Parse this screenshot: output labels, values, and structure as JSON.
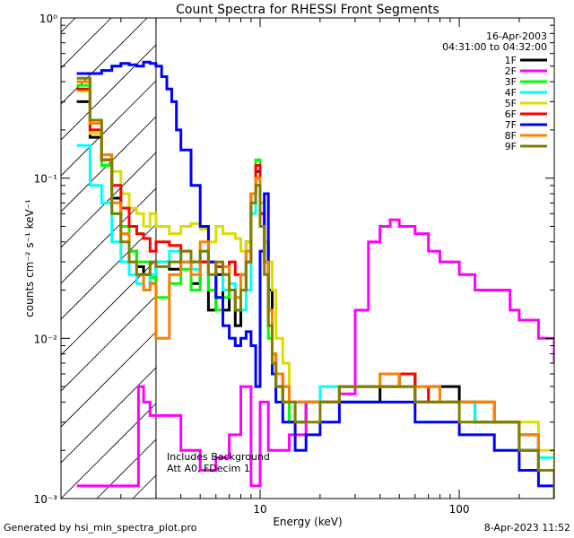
{
  "chart_data": {
    "type": "line",
    "title": "Count Spectra for RHESSI Front Segments",
    "date": "16-Apr-2003",
    "time_range": "04:31:00 to 04:32:00",
    "xlabel": "Energy (keV)",
    "ylabel": "counts cm⁻² s⁻¹ keV⁻¹",
    "x_scale": "log",
    "y_scale": "log",
    "xlim": [
      1,
      300
    ],
    "ylim": [
      0.001,
      1
    ],
    "x_ticks": [
      "10",
      "100"
    ],
    "y_ticks": [
      "10⁻³",
      "10⁻²",
      "10⁻¹",
      "10⁰"
    ],
    "legend_position": "top-right",
    "hatched_region_keV": [
      1,
      3
    ],
    "annotation_lines": [
      "Includes Background",
      "Att A0, FDecim 1"
    ],
    "footer_left": "Generated by hsi_min_spectra_plot.pro",
    "footer_right": "8-Apr-2023 11:52",
    "series": [
      {
        "name": "1F",
        "color": "#000000",
        "x": [
          1.2,
          1.4,
          1.6,
          1.8,
          2.0,
          2.2,
          2.4,
          2.6,
          2.8,
          3.0,
          3.5,
          4,
          4.5,
          5,
          5.5,
          6,
          6.5,
          7,
          7.5,
          8,
          8.5,
          9,
          9.5,
          10,
          10.5,
          11,
          11.5,
          12,
          13,
          14,
          15,
          17,
          20,
          25,
          30,
          40,
          50,
          60,
          70,
          80,
          100,
          120,
          150,
          200,
          250,
          300
        ],
        "y": [
          0.3,
          0.18,
          0.13,
          0.075,
          0.05,
          0.035,
          0.028,
          0.025,
          0.022,
          0.03,
          0.027,
          0.03,
          0.022,
          0.03,
          0.015,
          0.025,
          0.015,
          0.02,
          0.012,
          0.025,
          0.04,
          0.08,
          0.11,
          0.06,
          0.04,
          0.02,
          0.008,
          0.005,
          0.004,
          0.003,
          0.003,
          0.004,
          0.004,
          0.004,
          0.004,
          0.005,
          0.006,
          0.004,
          0.004,
          0.005,
          0.004,
          0.003,
          0.003,
          0.002,
          0.0015,
          0.001
        ]
      },
      {
        "name": "2F",
        "color": "#ff00ff",
        "x": [
          1.2,
          1.5,
          2.0,
          2.3,
          2.45,
          2.6,
          2.8,
          3.0,
          4.0,
          5.0,
          6.0,
          7.0,
          8.0,
          9.0,
          10,
          11,
          12,
          14,
          17,
          20,
          25,
          30,
          35,
          40,
          45,
          50,
          60,
          70,
          80,
          100,
          120,
          150,
          180,
          200,
          250,
          300
        ],
        "y": [
          0.0012,
          0.0012,
          0.0012,
          0.0012,
          0.005,
          0.004,
          0.0033,
          0.0033,
          0.002,
          0.0015,
          0.0018,
          0.0025,
          0.005,
          0.0012,
          0.004,
          0.002,
          0.002,
          0.0025,
          0.004,
          0.004,
          0.0045,
          0.015,
          0.04,
          0.05,
          0.055,
          0.05,
          0.045,
          0.035,
          0.03,
          0.025,
          0.02,
          0.02,
          0.015,
          0.013,
          0.01,
          0.007
        ]
      },
      {
        "name": "3F",
        "color": "#00ff00",
        "x": [
          1.2,
          1.4,
          1.6,
          1.8,
          2.0,
          2.2,
          2.4,
          2.6,
          2.8,
          3.0,
          3.5,
          4,
          4.5,
          5,
          5.5,
          6,
          6.5,
          7,
          7.5,
          8,
          8.5,
          9,
          9.5,
          10,
          10.5,
          11,
          11.5,
          12,
          13,
          14,
          15,
          17,
          20,
          25,
          30,
          40,
          50,
          60,
          70,
          80,
          100,
          120,
          150,
          200,
          250,
          300
        ],
        "y": [
          0.38,
          0.2,
          0.12,
          0.06,
          0.05,
          0.035,
          0.03,
          0.03,
          0.024,
          0.018,
          0.022,
          0.027,
          0.02,
          0.035,
          0.02,
          0.015,
          0.018,
          0.02,
          0.015,
          0.02,
          0.03,
          0.08,
          0.13,
          0.07,
          0.03,
          0.01,
          0.006,
          0.005,
          0.004,
          0.003,
          0.004,
          0.004,
          0.004,
          0.005,
          0.005,
          0.006,
          0.005,
          0.004,
          0.005,
          0.004,
          0.004,
          0.004,
          0.003,
          0.0025,
          0.0015,
          0.001
        ]
      },
      {
        "name": "4F",
        "color": "#00ffff",
        "x": [
          1.2,
          1.4,
          1.6,
          1.8,
          2.0,
          2.2,
          2.4,
          2.6,
          2.8,
          3.0,
          3.5,
          4,
          4.5,
          5,
          5.5,
          6,
          6.5,
          7,
          7.5,
          8,
          8.5,
          9,
          9.5,
          10,
          10.5,
          11,
          11.5,
          12,
          13,
          14,
          15,
          17,
          20,
          25,
          30,
          40,
          50,
          60,
          70,
          80,
          100,
          120,
          150,
          200,
          250,
          300
        ],
        "y": [
          0.16,
          0.09,
          0.07,
          0.04,
          0.03,
          0.025,
          0.022,
          0.02,
          0.025,
          0.03,
          0.035,
          0.03,
          0.027,
          0.035,
          0.03,
          0.028,
          0.02,
          0.022,
          0.018,
          0.015,
          0.02,
          0.06,
          0.09,
          0.05,
          0.03,
          0.015,
          0.008,
          0.006,
          0.005,
          0.004,
          0.004,
          0.004,
          0.005,
          0.005,
          0.005,
          0.005,
          0.005,
          0.004,
          0.004,
          0.004,
          0.004,
          0.003,
          0.003,
          0.0025,
          0.0018,
          0.0012
        ]
      },
      {
        "name": "5F",
        "color": "#dddd00",
        "x": [
          1.2,
          1.4,
          1.6,
          1.8,
          2.0,
          2.2,
          2.4,
          2.6,
          2.8,
          3.0,
          3.5,
          4,
          4.5,
          5,
          5.5,
          6,
          6.5,
          7,
          7.5,
          8,
          8.5,
          9,
          9.5,
          10,
          10.5,
          11,
          11.5,
          12,
          13,
          14,
          15,
          17,
          20,
          25,
          30,
          40,
          50,
          60,
          70,
          80,
          100,
          120,
          150,
          200,
          250,
          300
        ],
        "y": [
          0.35,
          0.19,
          0.14,
          0.11,
          0.08,
          0.065,
          0.06,
          0.05,
          0.06,
          0.05,
          0.045,
          0.05,
          0.052,
          0.048,
          0.04,
          0.05,
          0.045,
          0.045,
          0.042,
          0.035,
          0.04,
          0.08,
          0.1,
          0.07,
          0.04,
          0.03,
          0.02,
          0.01,
          0.007,
          0.004,
          0.004,
          0.004,
          0.004,
          0.005,
          0.005,
          0.005,
          0.005,
          0.005,
          0.004,
          0.004,
          0.004,
          0.004,
          0.003,
          0.003,
          0.002,
          0.0015
        ]
      },
      {
        "name": "6F",
        "color": "#ff0000",
        "x": [
          1.2,
          1.4,
          1.6,
          1.8,
          2.0,
          2.2,
          2.4,
          2.6,
          2.8,
          3.0,
          3.5,
          4,
          4.5,
          5,
          5.5,
          6,
          6.5,
          7,
          7.5,
          8,
          8.5,
          9,
          9.5,
          10,
          10.5,
          11,
          11.5,
          12,
          13,
          14,
          15,
          17,
          20,
          25,
          30,
          40,
          50,
          60,
          70,
          80,
          100,
          120,
          150,
          200,
          250,
          300
        ],
        "y": [
          0.36,
          0.2,
          0.13,
          0.09,
          0.065,
          0.05,
          0.045,
          0.042,
          0.035,
          0.04,
          0.038,
          0.035,
          0.03,
          0.03,
          0.03,
          0.028,
          0.025,
          0.03,
          0.025,
          0.02,
          0.03,
          0.08,
          0.12,
          0.06,
          0.03,
          0.015,
          0.008,
          0.006,
          0.005,
          0.004,
          0.004,
          0.004,
          0.004,
          0.005,
          0.005,
          0.005,
          0.006,
          0.004,
          0.005,
          0.004,
          0.004,
          0.004,
          0.003,
          0.0025,
          0.0015,
          0.0012
        ]
      },
      {
        "name": "7F",
        "color": "#0000ff",
        "x": [
          1.2,
          1.4,
          1.6,
          1.8,
          2.0,
          2.2,
          2.4,
          2.6,
          2.8,
          3.0,
          3.2,
          3.4,
          3.6,
          3.8,
          4,
          4.5,
          5,
          5.5,
          6,
          6.5,
          7,
          7.5,
          8,
          8.5,
          9,
          9.5,
          10,
          10.5,
          11,
          11.5,
          12,
          13,
          14,
          15,
          17,
          20,
          25,
          30,
          40,
          50,
          60,
          70,
          80,
          100,
          120,
          150,
          200,
          250,
          300
        ],
        "y": [
          0.45,
          0.45,
          0.47,
          0.5,
          0.52,
          0.51,
          0.5,
          0.53,
          0.52,
          0.5,
          0.43,
          0.36,
          0.3,
          0.2,
          0.15,
          0.09,
          0.05,
          0.03,
          0.018,
          0.012,
          0.01,
          0.009,
          0.01,
          0.011,
          0.009,
          0.005,
          0.035,
          0.08,
          0.015,
          0.006,
          0.004,
          0.003,
          0.003,
          0.002,
          0.0025,
          0.003,
          0.004,
          0.004,
          0.004,
          0.004,
          0.003,
          0.003,
          0.003,
          0.0025,
          0.0025,
          0.002,
          0.0015,
          0.0012,
          0.001
        ]
      },
      {
        "name": "8F",
        "color": "#ff8000",
        "x": [
          1.2,
          1.4,
          1.6,
          1.8,
          2.0,
          2.2,
          2.4,
          2.6,
          2.8,
          3.0,
          3.5,
          4,
          4.5,
          5,
          5.5,
          6,
          6.5,
          7,
          7.5,
          8,
          8.5,
          9,
          9.5,
          10,
          10.5,
          11,
          11.5,
          12,
          13,
          14,
          15,
          17,
          20,
          25,
          30,
          40,
          50,
          60,
          70,
          80,
          100,
          120,
          150,
          200,
          250,
          300
        ],
        "y": [
          0.4,
          0.22,
          0.14,
          0.07,
          0.045,
          0.03,
          0.025,
          0.02,
          0.022,
          0.01,
          0.025,
          0.03,
          0.025,
          0.04,
          0.025,
          0.03,
          0.028,
          0.02,
          0.018,
          0.025,
          0.035,
          0.08,
          0.1,
          0.05,
          0.03,
          0.015,
          0.008,
          0.006,
          0.005,
          0.004,
          0.004,
          0.004,
          0.004,
          0.005,
          0.005,
          0.006,
          0.005,
          0.005,
          0.005,
          0.004,
          0.004,
          0.004,
          0.003,
          0.0025,
          0.0015,
          0.0012
        ]
      },
      {
        "name": "9F",
        "color": "#808000",
        "x": [
          1.2,
          1.4,
          1.6,
          1.8,
          2.0,
          2.2,
          2.4,
          2.6,
          2.8,
          3.0,
          3.5,
          4,
          4.5,
          5,
          5.5,
          6,
          6.5,
          7,
          7.5,
          8,
          8.5,
          9,
          9.5,
          10,
          10.5,
          11,
          11.5,
          12,
          13,
          14,
          15,
          17,
          20,
          25,
          30,
          40,
          50,
          60,
          70,
          80,
          100,
          120,
          150,
          200,
          250,
          300
        ],
        "y": [
          0.42,
          0.23,
          0.13,
          0.06,
          0.04,
          0.03,
          0.025,
          0.025,
          0.03,
          0.028,
          0.03,
          0.035,
          0.03,
          0.035,
          0.025,
          0.03,
          0.025,
          0.02,
          0.015,
          0.02,
          0.03,
          0.07,
          0.09,
          0.05,
          0.025,
          0.012,
          0.007,
          0.005,
          0.004,
          0.004,
          0.003,
          0.003,
          0.004,
          0.005,
          0.005,
          0.005,
          0.005,
          0.004,
          0.004,
          0.004,
          0.003,
          0.003,
          0.003,
          0.002,
          0.0015,
          0.001
        ]
      }
    ]
  }
}
